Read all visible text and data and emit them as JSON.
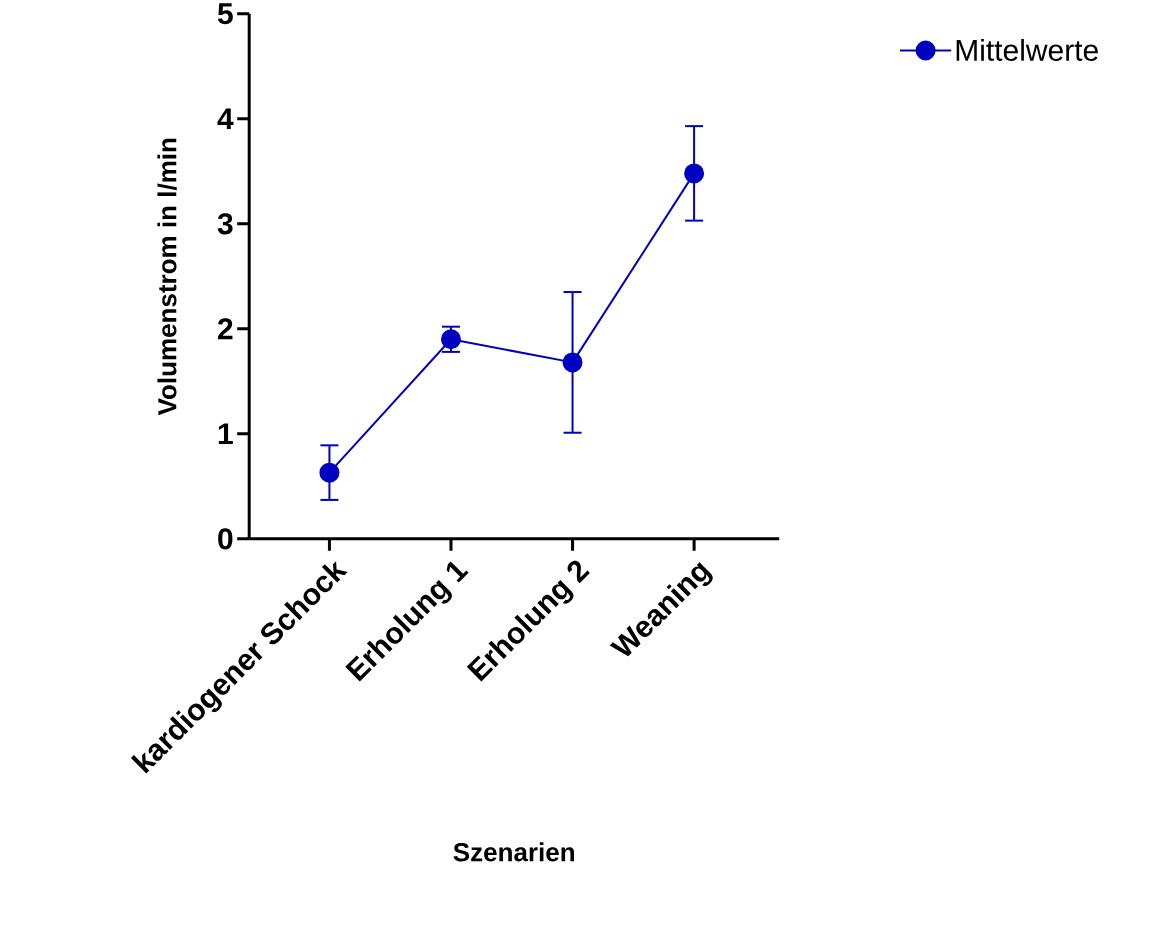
{
  "chart_data": {
    "type": "line",
    "xlabel": "Szenarien",
    "ylabel": "Volumenstrom in l/min",
    "categories": [
      "kardiogener Schock",
      "Erholung 1",
      "Erholung 2",
      "Weaning"
    ],
    "series": [
      {
        "name": "Mittelwerte",
        "color": "#0000c0",
        "values": [
          0.63,
          1.9,
          1.68,
          3.48
        ],
        "errors": [
          0.26,
          0.12,
          0.67,
          0.45
        ]
      }
    ],
    "ylim": [
      0,
      5
    ],
    "yticks": [
      0,
      1,
      2,
      3,
      4,
      5
    ],
    "legend": "top right",
    "marker": "circle",
    "line_style": "solid"
  }
}
